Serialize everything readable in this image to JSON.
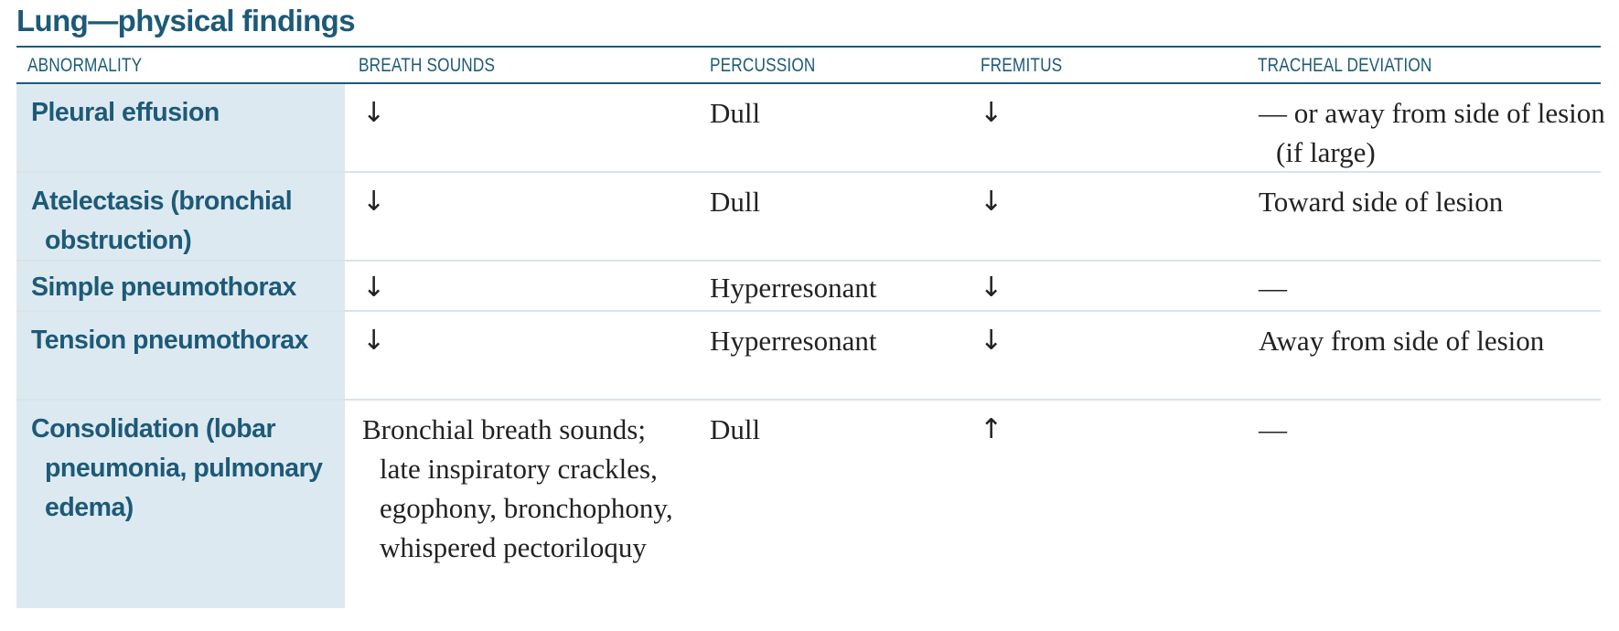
{
  "title": "Lung—physical findings",
  "header": {
    "abnormality": "ABNORMALITY",
    "breath_sounds": "BREATH SOUNDS",
    "percussion": "PERCUSSION",
    "fremitus": "FREMITUS",
    "tracheal_deviation": "TRACHEAL DEVIATION"
  },
  "rows": [
    {
      "abnormality": "Pleural effusion",
      "breath_sounds": "↓",
      "percussion": "Dull",
      "fremitus": "↓",
      "tracheal_deviation": "— or away from side of lesion (if large)"
    },
    {
      "abnormality": "Atelectasis (bronchial obstruction)",
      "breath_sounds": "↓",
      "percussion": "Dull",
      "fremitus": "↓",
      "tracheal_deviation": "Toward side of lesion"
    },
    {
      "abnormality": "Simple pneumothorax",
      "breath_sounds": "↓",
      "percussion": "Hyperresonant",
      "fremitus": "↓",
      "tracheal_deviation": "—"
    },
    {
      "abnormality": "Tension pneumothorax",
      "breath_sounds": "↓",
      "percussion": "Hyperresonant",
      "fremitus": "↓",
      "tracheal_deviation": "Away from side of lesion"
    },
    {
      "abnormality": "Consolidation (lobar pneumonia, pulmonary edema)",
      "breath_sounds": "Bronchial breath sounds; late inspiratory crackles, egophony, bronchophony, whispered pectoriloquy",
      "percussion": "Dull",
      "fremitus": "↑",
      "tracheal_deviation": "—"
    }
  ]
}
